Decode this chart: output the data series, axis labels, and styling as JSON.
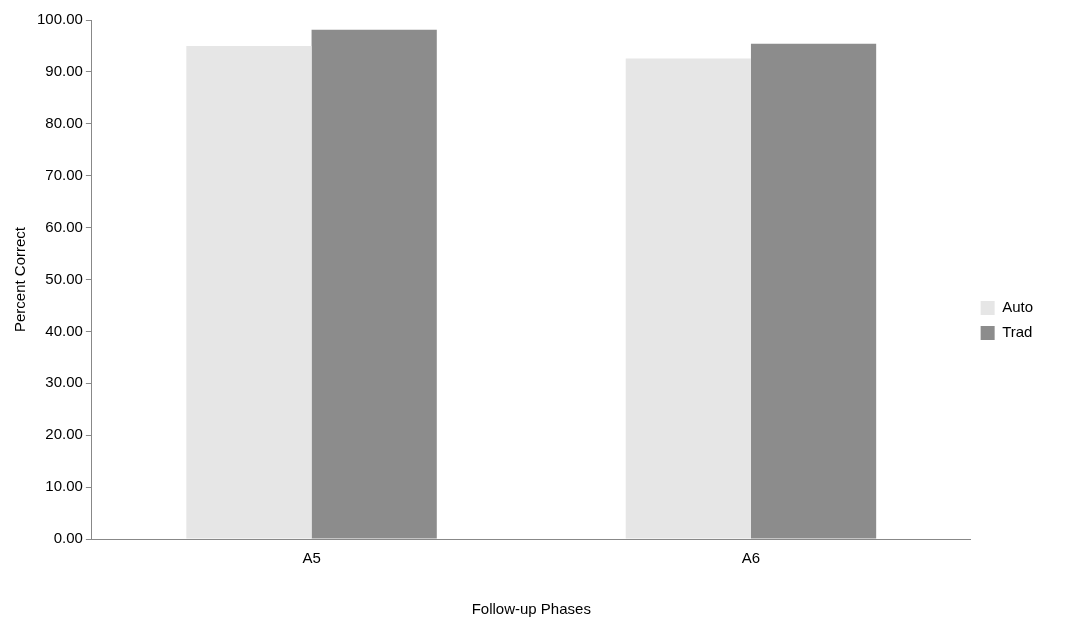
{
  "chart_data": {
    "type": "bar",
    "xlabel": "Follow-up Phases",
    "ylabel": "Percent Correct",
    "categories": [
      "A5",
      "A6"
    ],
    "series": [
      {
        "name": "Auto",
        "color": "#e6e6e6",
        "values": [
          95.0,
          92.6
        ]
      },
      {
        "name": "Trad",
        "color": "#8c8c8c",
        "values": [
          98.1,
          95.4
        ]
      }
    ],
    "ylim": [
      0,
      100
    ],
    "yticks": [
      {
        "value": 0,
        "label": "0.00"
      },
      {
        "value": 10,
        "label": "10.00"
      },
      {
        "value": 20,
        "label": "20.00"
      },
      {
        "value": 30,
        "label": "30.00"
      },
      {
        "value": 40,
        "label": "40.00"
      },
      {
        "value": 50,
        "label": "50.00"
      },
      {
        "value": 60,
        "label": "60.00"
      },
      {
        "value": 70,
        "label": "70.00"
      },
      {
        "value": 80,
        "label": "80.00"
      },
      {
        "value": 90,
        "label": "90.00"
      },
      {
        "value": 100,
        "label": "100.00"
      }
    ],
    "grid": false,
    "legend": "right"
  }
}
